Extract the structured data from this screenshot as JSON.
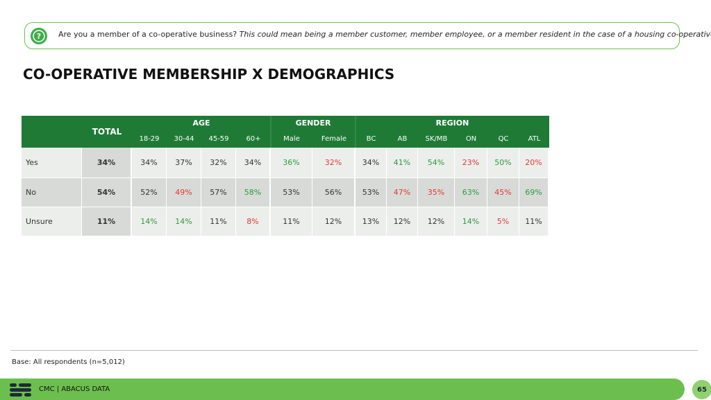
{
  "question": {
    "lead": "Are you a member of a co-operative business?",
    "detail": "This could mean being a member customer, member employee, or a member resident in the case of a housing co-operative."
  },
  "title": "CO-OPERATIVE MEMBERSHIP X DEMOGRAPHICS",
  "table": {
    "total_label": "TOTAL",
    "groups": [
      {
        "label": "AGE",
        "columns": [
          "18-29",
          "30-44",
          "45-59",
          "60+"
        ]
      },
      {
        "label": "GENDER",
        "columns": [
          "Male",
          "Female"
        ]
      },
      {
        "label": "REGION",
        "columns": [
          "BC",
          "AB",
          "SK/MB",
          "ON",
          "QC",
          "ATL"
        ]
      }
    ],
    "rows": [
      {
        "label": "Yes",
        "total": "34%",
        "cells": [
          "34%",
          "37%",
          "32%",
          "34%",
          "36%",
          "32%",
          "34%",
          "41%",
          "54%",
          "23%",
          "50%",
          "20%"
        ],
        "colors": [
          "#333333",
          "#333333",
          "#333333",
          "#333333",
          "#2e9a3e",
          "#e53935",
          "#333333",
          "#2e9a3e",
          "#2e9a3e",
          "#e53935",
          "#2e9a3e",
          "#e53935"
        ]
      },
      {
        "label": "No",
        "total": "54%",
        "cells": [
          "52%",
          "49%",
          "57%",
          "58%",
          "53%",
          "56%",
          "53%",
          "47%",
          "35%",
          "63%",
          "45%",
          "69%"
        ],
        "colors": [
          "#333333",
          "#e53935",
          "#333333",
          "#2e9a3e",
          "#333333",
          "#333333",
          "#333333",
          "#e53935",
          "#e53935",
          "#2e9a3e",
          "#e53935",
          "#2e9a3e"
        ]
      },
      {
        "label": "Unsure",
        "total": "11%",
        "cells": [
          "14%",
          "14%",
          "11%",
          "8%",
          "11%",
          "12%",
          "13%",
          "12%",
          "12%",
          "14%",
          "5%",
          "11%"
        ],
        "colors": [
          "#2e9a3e",
          "#2e9a3e",
          "#333333",
          "#e53935",
          "#333333",
          "#333333",
          "#333333",
          "#333333",
          "#333333",
          "#2e9a3e",
          "#e53935",
          "#333333"
        ]
      }
    ]
  },
  "base_note": "Base: All respondents (n=5,012)",
  "footer": {
    "brand": "CMC | ABACUS DATA",
    "page": "65"
  }
}
